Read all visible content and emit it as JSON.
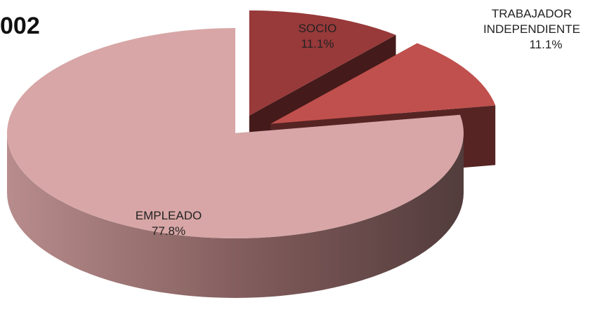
{
  "chart_data": {
    "type": "pie",
    "title": "002",
    "categories": [
      "SOCIO",
      "TRABAJADOR INDEPENDIENTE",
      "EMPLEADO"
    ],
    "values": [
      11.1,
      11.1,
      77.8
    ],
    "value_labels": [
      "11.1%",
      "11.1%",
      "77.8%"
    ],
    "colors": [
      "#98393a",
      "#c0504d",
      "#d8a6a6"
    ],
    "exploded": [
      true,
      true,
      false
    ]
  }
}
